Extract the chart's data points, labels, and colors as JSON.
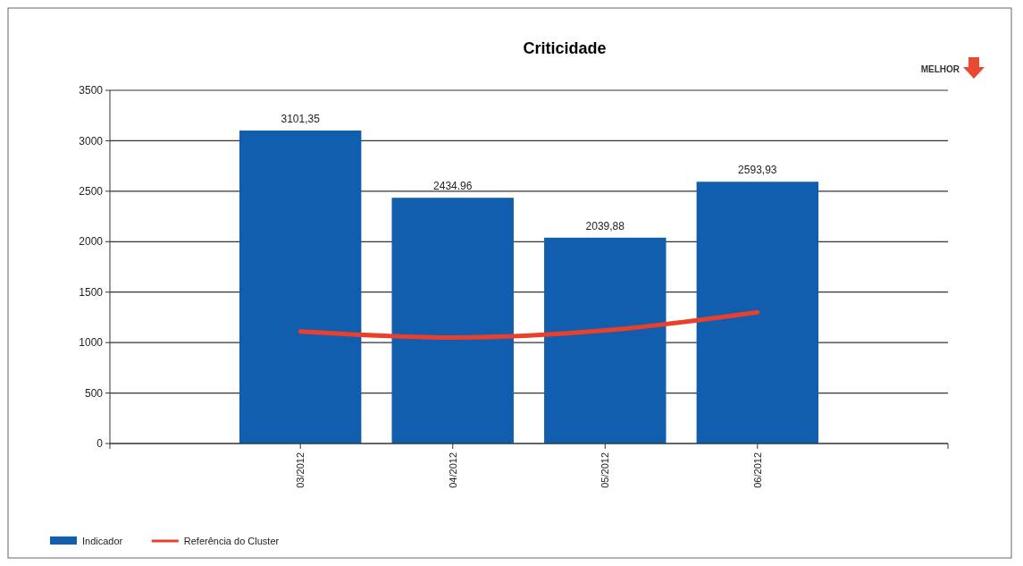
{
  "chart_data": {
    "type": "bar",
    "title": "Criticidade",
    "categories": [
      "03/2012",
      "04/2012",
      "05/2012",
      "06/2012"
    ],
    "series": [
      {
        "name": "Indicador",
        "color": "#125eae",
        "values": [
          3101.35,
          2434.96,
          2039.88,
          2593.93
        ],
        "value_labels": [
          "3101,35",
          "2434.96",
          "2039,88",
          "2593,93"
        ]
      },
      {
        "name": "Referência do Cluster",
        "type": "line",
        "color": "#e8402c",
        "values": [
          1110,
          1050,
          1120,
          1300
        ]
      }
    ],
    "ylim": [
      0,
      3500
    ],
    "yticks": [
      0,
      500,
      1000,
      1500,
      2000,
      2500,
      3000,
      3500
    ],
    "grid": "y",
    "legend": "bottom left",
    "line_style": "solid",
    "marker": "none",
    "annotations": [
      "MELHOR"
    ]
  }
}
